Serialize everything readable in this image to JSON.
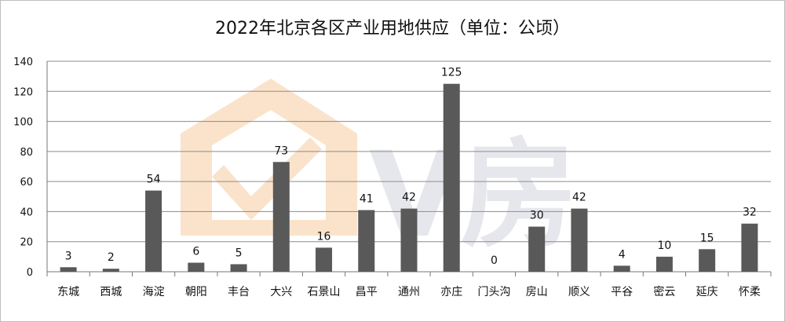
{
  "chart_data": {
    "type": "bar",
    "title": "2022年北京各区产业用地供应（单位：公顷）",
    "xlabel": "",
    "ylabel": "",
    "categories": [
      "东城",
      "西城",
      "海淀",
      "朝阳",
      "丰台",
      "大兴",
      "石景山",
      "昌平",
      "通州",
      "亦庄",
      "门头沟",
      "房山",
      "顺义",
      "平谷",
      "密云",
      "延庆",
      "怀柔"
    ],
    "values": [
      3,
      2,
      54,
      6,
      5,
      73,
      16,
      41,
      42,
      125,
      0,
      30,
      42,
      4,
      10,
      15,
      32
    ],
    "ylim": [
      0,
      140
    ],
    "yticks": [
      0,
      20,
      40,
      60,
      80,
      100,
      120,
      140
    ],
    "grid": true,
    "legend": "none",
    "bar_color": "#595959",
    "grid_color": "#8c8c8c"
  },
  "watermark": {
    "text": "V房",
    "house_color": "#f6c28b",
    "text_color": "#c9ccd6"
  }
}
